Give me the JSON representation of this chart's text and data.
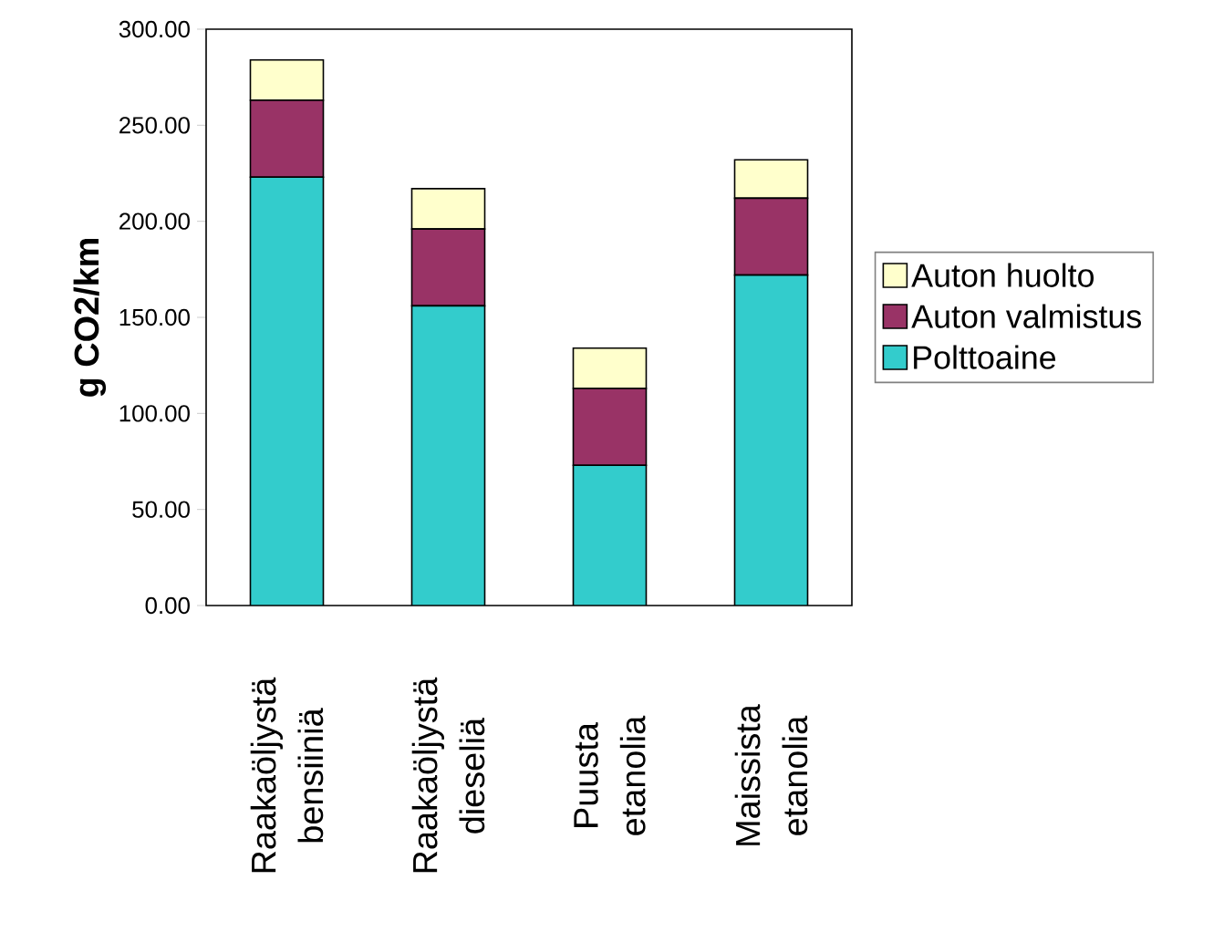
{
  "chart_data": {
    "type": "bar",
    "stacked": true,
    "ylabel": "g CO2/km",
    "categories": [
      "Raakaöljystä bensiiniä",
      "Raakaöljystä dieseliä",
      "Puusta etanolia",
      "Maissista etanolia"
    ],
    "series": [
      {
        "name": "Polttoaine",
        "color": "#33cccc",
        "values": [
          223,
          156,
          73,
          172
        ]
      },
      {
        "name": "Auton valmistus",
        "color": "#993366",
        "values": [
          40,
          40,
          40,
          40
        ]
      },
      {
        "name": "Auton huolto",
        "color": "#ffffcc",
        "values": [
          21,
          21,
          21,
          20
        ]
      }
    ],
    "ylim": [
      0,
      300
    ],
    "yticks": [
      {
        "value": 0,
        "label": "0.00"
      },
      {
        "value": 50,
        "label": "50.00"
      },
      {
        "value": 100,
        "label": "100.00"
      },
      {
        "value": 150,
        "label": "150.00"
      },
      {
        "value": 200,
        "label": "200.00"
      },
      {
        "value": 250,
        "label": "250.00"
      },
      {
        "value": 300,
        "label": "300.00"
      }
    ],
    "legend": "right",
    "grid": false
  }
}
